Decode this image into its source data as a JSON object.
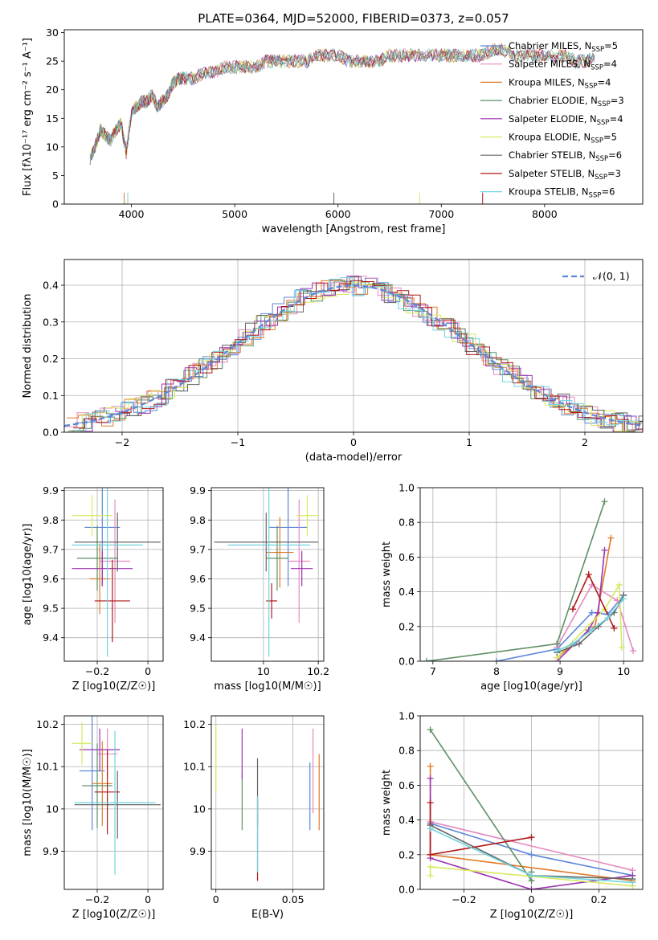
{
  "title": "PLATE=0364, MJD=52000, FIBERID=0373, z=0.057",
  "models": [
    {
      "name": "Chabrier MILES",
      "nssp": 5,
      "color": "#5b86d8"
    },
    {
      "name": "Salpeter MILES",
      "nssp": 4,
      "color": "#e48ac0"
    },
    {
      "name": "Kroupa MILES",
      "nssp": 4,
      "color": "#e07b28"
    },
    {
      "name": "Chabrier ELODIE",
      "nssp": 3,
      "color": "#5e8f64"
    },
    {
      "name": "Salpeter ELODIE",
      "nssp": 4,
      "color": "#9b33b0"
    },
    {
      "name": "Kroupa ELODIE",
      "nssp": 5,
      "color": "#d8e860"
    },
    {
      "name": "Chabrier STELIB",
      "nssp": 6,
      "color": "#666666"
    },
    {
      "name": "Salpeter STELIB",
      "nssp": 3,
      "color": "#b01818"
    },
    {
      "name": "Kroupa STELIB",
      "nssp": 6,
      "color": "#70d4df"
    }
  ],
  "legend_suffix": "SSP",
  "chart_data": [
    {
      "id": "spectrum",
      "type": "line",
      "xlabel": "wavelength [Angstrom, rest frame]",
      "ylabel": "Flux [fλ10⁻¹⁷ erg cm⁻² s⁻¹ A⁻¹]",
      "xlim": [
        3350,
        8950
      ],
      "ylim": [
        0,
        30.5
      ],
      "xticks": [
        4000,
        5000,
        6000,
        7000,
        8000
      ],
      "yticks": [
        0,
        5,
        10,
        15,
        20,
        25,
        30
      ],
      "legend": "right",
      "x": [
        3600,
        3650,
        3700,
        3750,
        3800,
        3850,
        3900,
        3950,
        4000,
        4050,
        4100,
        4150,
        4200,
        4250,
        4300,
        4350,
        4400,
        4450,
        4500,
        4600,
        4700,
        4800,
        4900,
        5000,
        5100,
        5200,
        5300,
        5400,
        5500,
        5600,
        5700,
        5800,
        5900,
        6000,
        6100,
        6200,
        6300,
        6400,
        6500,
        6600,
        6700,
        6800,
        6900,
        7000,
        7100,
        7200,
        7300,
        7400,
        7500,
        7600,
        7700,
        7800,
        7900,
        8000,
        8100,
        8200,
        8300,
        8400,
        8500
      ],
      "y": [
        8,
        10,
        13,
        12,
        11,
        13,
        14,
        9,
        16,
        17,
        18,
        18,
        19,
        17,
        18,
        19,
        21,
        22,
        22,
        22,
        23,
        23,
        24,
        24,
        24,
        24,
        25,
        25,
        25,
        25,
        25,
        26,
        26,
        26,
        25,
        25,
        25,
        25,
        26,
        26,
        26,
        26,
        26,
        26,
        26,
        26,
        26,
        26,
        27,
        27,
        26,
        26,
        26,
        26,
        26,
        26,
        25,
        25,
        26
      ]
    },
    {
      "id": "residuals",
      "type": "line",
      "xlabel": "(data-model)/error",
      "ylabel": "Normed distribution",
      "xlim": [
        -2.5,
        2.5
      ],
      "ylim": [
        0,
        0.47
      ],
      "xticks": [
        -2,
        -1,
        0,
        1,
        2
      ],
      "yticks": [
        0.0,
        0.1,
        0.2,
        0.3,
        0.4
      ],
      "reference_label": "𝒩(0, 1)",
      "legend": "top-right"
    },
    {
      "id": "age_vs_Z",
      "type": "scatter",
      "xlabel": "Z [log10(Z/Z☉)]",
      "ylabel": "age [log10(age/yr)]",
      "xlim": [
        -0.33,
        0.06
      ],
      "ylim": [
        9.32,
        9.91
      ],
      "xticks": [
        -0.2,
        0.0
      ],
      "yticks": [
        9.4,
        9.5,
        9.6,
        9.7,
        9.8,
        9.9
      ],
      "points": [
        {
          "x": -0.18,
          "y": 9.775,
          "xerr": 0.07,
          "yerr": 0.2
        },
        {
          "x": -0.13,
          "y": 9.66,
          "xerr": 0.06,
          "yerr": 0.21
        },
        {
          "x": -0.19,
          "y": 9.6,
          "xerr": 0.04,
          "yerr": 0.12
        },
        {
          "x": -0.2,
          "y": 9.67,
          "xerr": 0.08,
          "yerr": 0.11
        },
        {
          "x": -0.18,
          "y": 9.635,
          "xerr": 0.12,
          "yerr": 0.06
        },
        {
          "x": -0.22,
          "y": 9.815,
          "xerr": 0.08,
          "yerr": 0.07
        },
        {
          "x": -0.12,
          "y": 9.725,
          "xerr": 0.17,
          "yerr": 0.1
        },
        {
          "x": -0.14,
          "y": 9.525,
          "xerr": 0.07,
          "yerr": 0.14
        },
        {
          "x": -0.16,
          "y": 9.715,
          "xerr": 0.14,
          "yerr": 0.38
        }
      ]
    },
    {
      "id": "age_vs_mass",
      "type": "scatter",
      "xlabel": "mass [log10(M/M☉)]",
      "ylabel": "",
      "xlim": [
        9.81,
        10.22
      ],
      "ylim": [
        9.32,
        9.91
      ],
      "xticks": [
        10.0,
        10.2
      ],
      "yticks": [
        9.4,
        9.5,
        9.6,
        9.7,
        9.8,
        9.9
      ],
      "points": [
        {
          "x": 10.09,
          "y": 9.775,
          "xerr": 0.07,
          "yerr": 0.2
        },
        {
          "x": 10.13,
          "y": 9.66,
          "xerr": 0.04,
          "yerr": 0.21
        },
        {
          "x": 10.06,
          "y": 9.69,
          "xerr": 0.05,
          "yerr": 0.12
        },
        {
          "x": 10.05,
          "y": 9.67,
          "xerr": 0.04,
          "yerr": 0.11
        },
        {
          "x": 10.14,
          "y": 9.635,
          "xerr": 0.04,
          "yerr": 0.06
        },
        {
          "x": 10.16,
          "y": 9.815,
          "xerr": 0.04,
          "yerr": 0.07
        },
        {
          "x": 10.01,
          "y": 9.725,
          "xerr": 0.19,
          "yerr": 0.1
        },
        {
          "x": 10.03,
          "y": 9.525,
          "xerr": 0.02,
          "yerr": 0.06
        },
        {
          "x": 10.02,
          "y": 9.715,
          "xerr": 0.15,
          "yerr": 0.38
        }
      ]
    },
    {
      "id": "weight_vs_age",
      "type": "line",
      "xlabel": "age [log10(age/yr)]",
      "ylabel": "mass weight",
      "xlim": [
        6.8,
        10.3
      ],
      "ylim": [
        0,
        1.0
      ],
      "xticks": [
        7,
        8,
        9,
        10
      ],
      "yticks": [
        0.0,
        0.2,
        0.4,
        0.6,
        0.8,
        1.0
      ],
      "series": [
        {
          "x": [
            8.0,
            8.95,
            9.5,
            9.75,
            10.0
          ],
          "y": [
            0.0,
            0.07,
            0.28,
            0.27,
            0.38
          ]
        },
        {
          "x": [
            8.95,
            9.5,
            9.9,
            10.15
          ],
          "y": [
            0.08,
            0.44,
            0.35,
            0.06
          ]
        },
        {
          "x": [
            8.95,
            9.55,
            9.8
          ],
          "y": [
            0.02,
            0.2,
            0.71
          ]
        },
        {
          "x": [
            6.9,
            8.95,
            9.7
          ],
          "y": [
            0.0,
            0.1,
            0.92
          ]
        },
        {
          "x": [
            8.95,
            9.45,
            9.6,
            9.7
          ],
          "y": [
            0.0,
            0.18,
            0.28,
            0.64
          ]
        },
        {
          "x": [
            8.95,
            9.7,
            9.93,
            9.97
          ],
          "y": [
            0.02,
            0.3,
            0.44,
            0.08
          ]
        },
        {
          "x": [
            8.95,
            9.3,
            9.6,
            9.85,
            10.0
          ],
          "y": [
            0.05,
            0.1,
            0.2,
            0.28,
            0.38
          ]
        },
        {
          "x": [
            9.2,
            9.45,
            9.85
          ],
          "y": [
            0.3,
            0.5,
            0.19
          ]
        },
        {
          "x": [
            8.95,
            9.2,
            9.5,
            9.75,
            10.0
          ],
          "y": [
            0.06,
            0.1,
            0.18,
            0.25,
            0.36
          ]
        }
      ]
    },
    {
      "id": "mass_vs_Z",
      "type": "scatter",
      "xlabel": "Z [log10(Z/Z☉)]",
      "ylabel": "mass [log10(M/M☉)]",
      "xlim": [
        -0.33,
        0.06
      ],
      "ylim": [
        9.81,
        10.22
      ],
      "xticks": [
        -0.2,
        0.0
      ],
      "yticks": [
        9.9,
        10.0,
        10.1,
        10.2
      ],
      "points": [
        {
          "x": -0.22,
          "y": 10.09,
          "xerr": 0.05,
          "yerr": 0.14
        },
        {
          "x": -0.16,
          "y": 10.13,
          "xerr": 0.04,
          "yerr": 0.06
        },
        {
          "x": -0.18,
          "y": 10.06,
          "xerr": 0.04,
          "yerr": 0.1
        },
        {
          "x": -0.2,
          "y": 10.055,
          "xerr": 0.06,
          "yerr": 0.1
        },
        {
          "x": -0.19,
          "y": 10.14,
          "xerr": 0.08,
          "yerr": 0.05
        },
        {
          "x": -0.26,
          "y": 10.155,
          "xerr": 0.04,
          "yerr": 0.05
        },
        {
          "x": -0.12,
          "y": 10.01,
          "xerr": 0.17,
          "yerr": 0.08
        },
        {
          "x": -0.16,
          "y": 10.04,
          "xerr": 0.05,
          "yerr": 0.1
        },
        {
          "x": -0.13,
          "y": 10.015,
          "xerr": 0.16,
          "yerr": 0.17
        }
      ]
    },
    {
      "id": "mass_vs_EBV",
      "type": "scatter",
      "xlabel": "E(B-V)",
      "ylabel": "",
      "xlim": [
        -0.003,
        0.07
      ],
      "ylim": [
        9.81,
        10.22
      ],
      "xticks": [
        0.0,
        0.05
      ],
      "yticks": [
        9.9,
        10.0,
        10.1,
        10.2
      ],
      "points": [
        {
          "x": 0.061,
          "y": 10.03,
          "yerr": 0.08
        },
        {
          "x": 0.063,
          "y": 10.09,
          "yerr": 0.1
        },
        {
          "x": 0.067,
          "y": 10.04,
          "yerr": 0.09
        },
        {
          "x": 0.017,
          "y": 10.02,
          "yerr": 0.07
        },
        {
          "x": 0.017,
          "y": 10.13,
          "yerr": 0.06
        },
        {
          "x": 0.0,
          "y": 10.12,
          "yerr": 0.08
        },
        {
          "x": 0.027,
          "y": 10.04,
          "yerr": 0.08
        },
        {
          "x": 0.027,
          "y": 9.93,
          "yerr": 0.1
        },
        {
          "x": 0.027,
          "y": 9.94,
          "yerr": 0.09
        }
      ]
    },
    {
      "id": "weight_vs_Z",
      "type": "line",
      "xlabel": "Z [log10(Z/Z☉)]",
      "ylabel": "mass weight",
      "xlim": [
        -0.33,
        0.33
      ],
      "ylim": [
        0,
        1.0
      ],
      "xticks": [
        -0.2,
        0.0,
        0.2
      ],
      "yticks": [
        0.0,
        0.2,
        0.4,
        0.6,
        0.8,
        1.0
      ],
      "series": [
        {
          "x": [
            -0.3,
            0.0,
            0.3
          ],
          "y": [
            0.38,
            0.2,
            0.08
          ]
        },
        {
          "x": [
            -0.3,
            0.3
          ],
          "y": [
            0.39,
            0.11
          ]
        },
        {
          "x": [
            -0.3,
            -0.3,
            0.3
          ],
          "y": [
            0.71,
            0.2,
            0.05
          ]
        },
        {
          "x": [
            -0.3,
            0.0,
            0.0
          ],
          "y": [
            0.92,
            0.05,
            0.1
          ]
        },
        {
          "x": [
            -0.3,
            -0.3,
            0.0,
            0.3
          ],
          "y": [
            0.64,
            0.18,
            0.0,
            0.08
          ]
        },
        {
          "x": [
            -0.3,
            -0.3,
            0.3
          ],
          "y": [
            0.08,
            0.13,
            0.02
          ]
        },
        {
          "x": [
            -0.3,
            0.0,
            0.3
          ],
          "y": [
            0.37,
            0.08,
            0.06
          ]
        },
        {
          "x": [
            -0.3,
            -0.3,
            0.0
          ],
          "y": [
            0.5,
            0.2,
            0.3
          ]
        },
        {
          "x": [
            -0.3,
            0.0,
            0.3
          ],
          "y": [
            0.35,
            0.08,
            0.04
          ]
        }
      ]
    }
  ]
}
